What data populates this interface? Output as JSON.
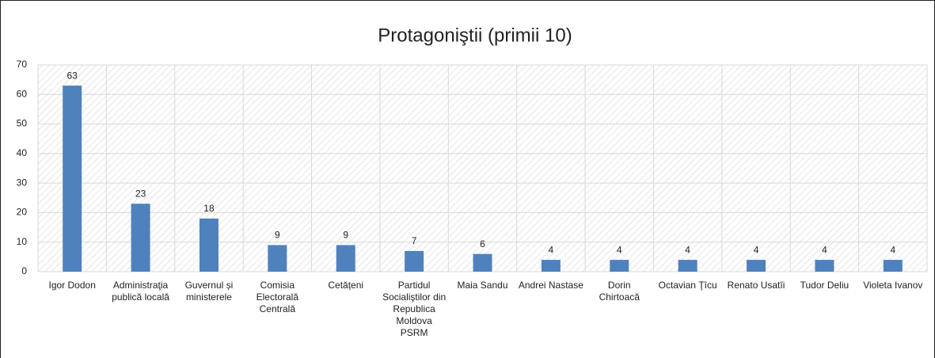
{
  "chart_data": {
    "type": "bar",
    "title": "Protagoniştii (primii 10)",
    "categories": [
      "Igor Dodon",
      "Administraţia publică locală",
      "Guvernul și ministerele",
      "Comisia Electorală Centrală",
      "Cetățeni",
      "Partidul Socialiştilor din Republica Moldova PSRM",
      "Maia Sandu",
      "Andrei Nastase",
      "Dorin Chirtoacă",
      "Octavian Ţîcu",
      "Renato Usatîi",
      "Tudor Deliu",
      "Violeta Ivanov"
    ],
    "values": [
      63,
      23,
      18,
      9,
      9,
      7,
      6,
      4,
      4,
      4,
      4,
      4,
      4
    ],
    "color": "#4f81bd",
    "ylim": [
      0,
      70
    ],
    "yticks": [
      0,
      10,
      20,
      30,
      40,
      50,
      60,
      70
    ],
    "grid": true
  }
}
